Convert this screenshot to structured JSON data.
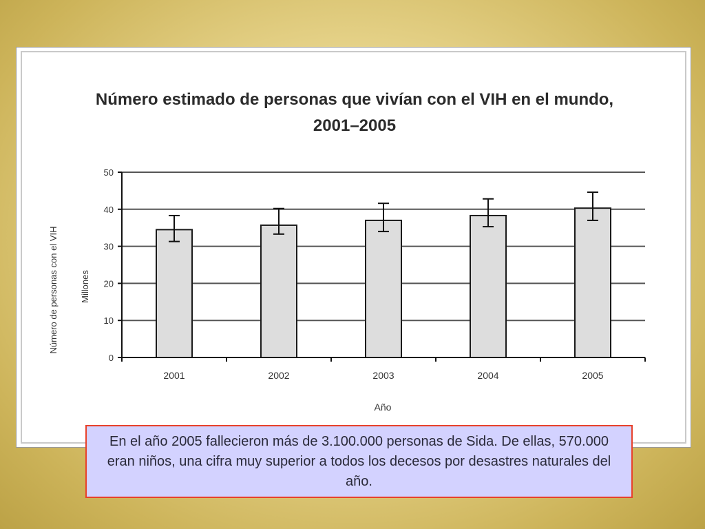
{
  "caption": "En el año 2005 fallecieron más de 3.100.000 personas de Sida. De ellas, 570.000 eran niños, una cifra muy superior a todos los decesos por desastres naturales del año.",
  "colors": {
    "bar_fill": "#dddddd",
    "bar_stroke": "#1a1a1a",
    "gridline": "#555555",
    "caption_bg": "#d3d2ff",
    "caption_border": "#e8412a"
  },
  "chart_data": {
    "type": "bar",
    "title_line1": "Número estimado de personas que vivían con el VIH en el mundo,",
    "title_line2": "2001–2005",
    "xlabel": "Año",
    "ylabel_line1": "Número de personas con el VIH",
    "ylabel_line2": "Millones",
    "categories": [
      "2001",
      "2002",
      "2003",
      "2004",
      "2005"
    ],
    "values": [
      34.5,
      35.7,
      37.0,
      38.3,
      40.3
    ],
    "error_low": [
      31.3,
      33.3,
      34.0,
      35.3,
      37.0
    ],
    "error_high": [
      38.3,
      40.2,
      41.6,
      42.8,
      44.6
    ],
    "ylim": [
      0,
      50
    ],
    "yticks": [
      "0",
      "10",
      "20",
      "30",
      "40",
      "50"
    ],
    "grid": true
  }
}
